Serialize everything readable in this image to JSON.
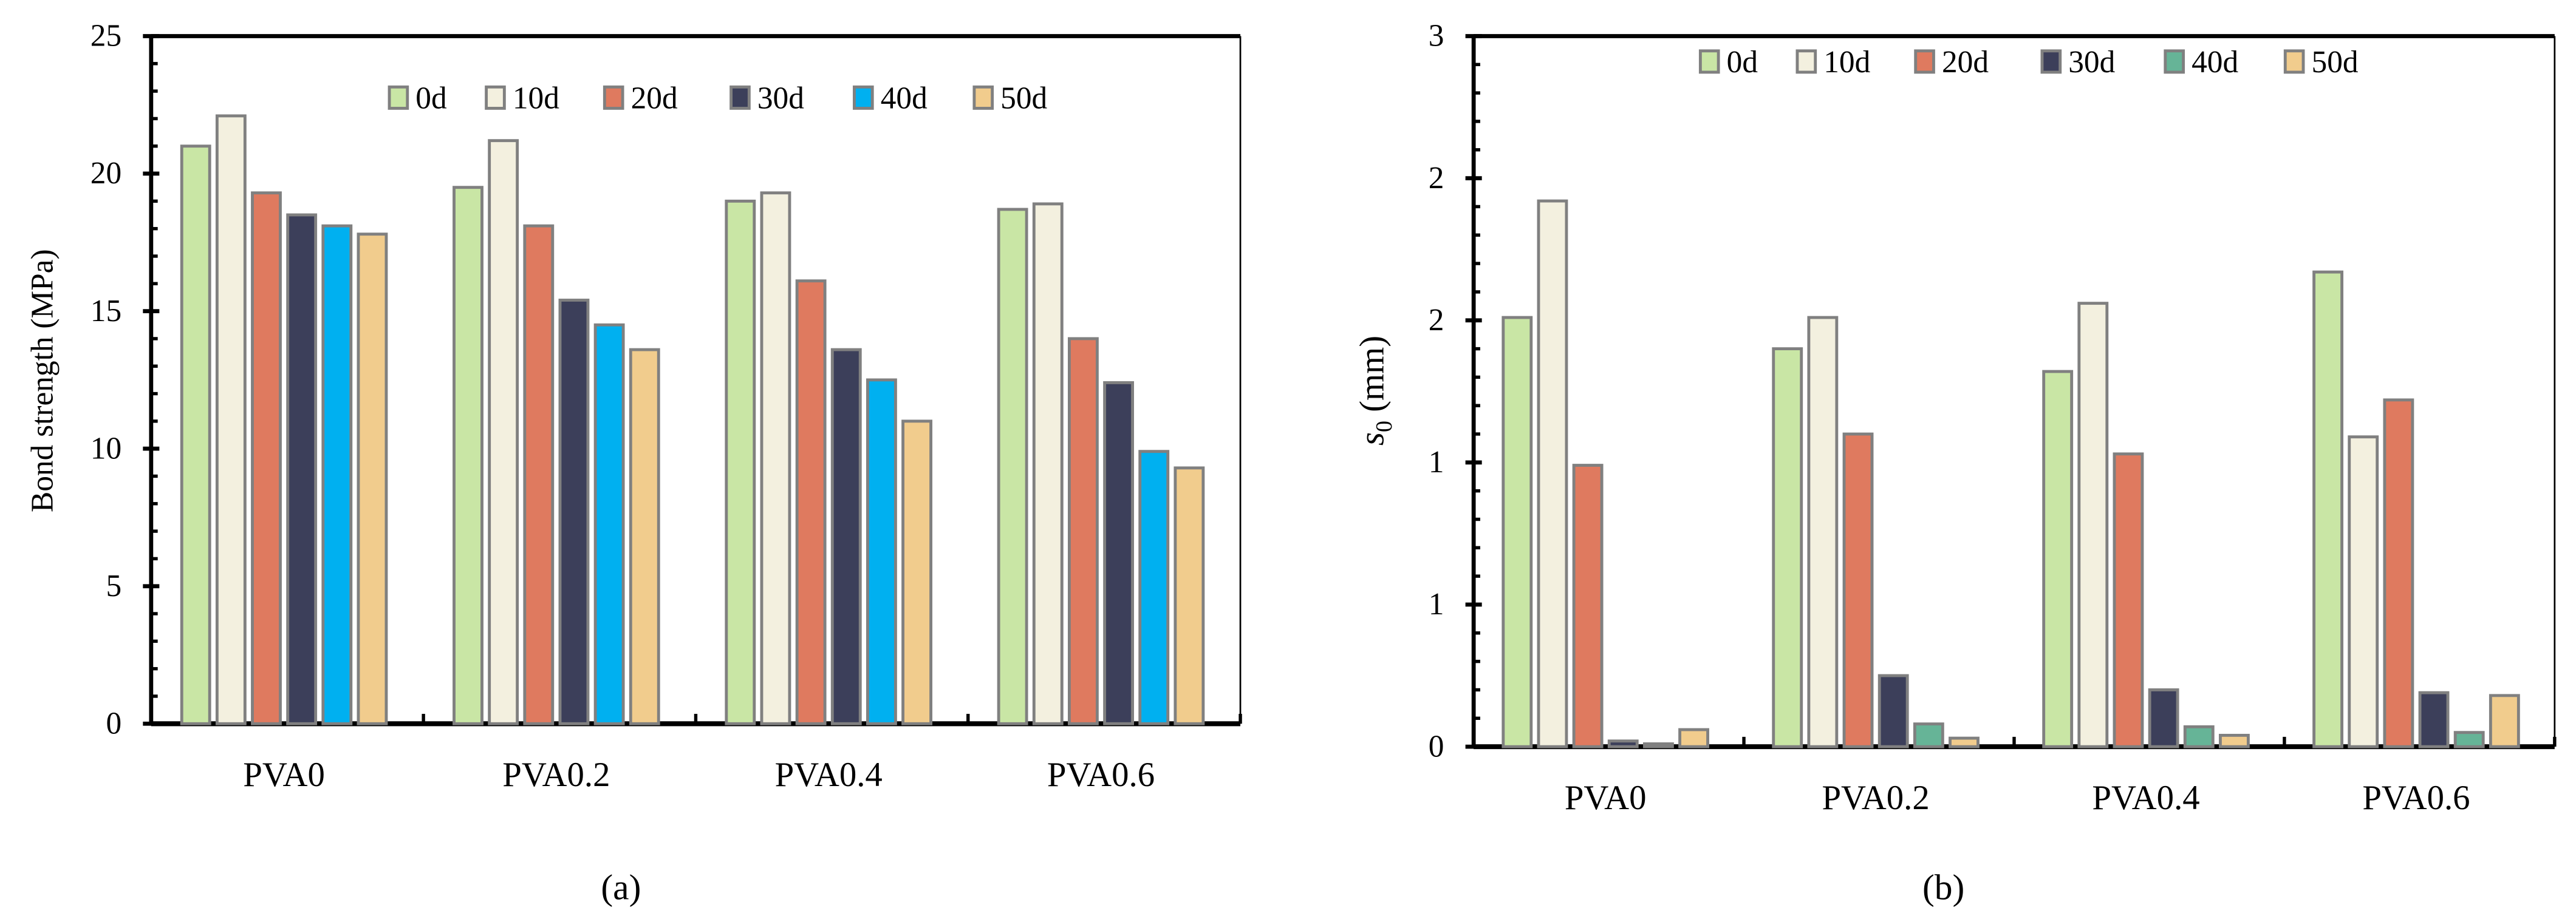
{
  "series_colors": {
    "0d": "#c9e6a5",
    "10d": "#f3f0df",
    "20d": "#df7a5f",
    "30d": "#3c3f5a",
    "40d_a": "#00b0f0",
    "40d_b": "#66b497",
    "50d": "#f1cc8d"
  },
  "bar_outline": "#808080",
  "chart_data": [
    {
      "type": "bar",
      "panel_label": "(a)",
      "ylabel": "Bond strength (MPa)",
      "xlabel": "",
      "ylim": [
        0,
        25
      ],
      "yticks": [
        0,
        5,
        10,
        15,
        20,
        25
      ],
      "ytick_labels": [
        "0",
        "5",
        "10",
        "15",
        "20",
        "25"
      ],
      "minor_tick_step": 1,
      "categories": [
        "PVA0",
        "PVA0.2",
        "PVA0.4",
        "PVA0.6"
      ],
      "legend_position": "top-right",
      "series": [
        {
          "name": "0d",
          "color": "#c9e6a5",
          "values": [
            21.0,
            19.5,
            19.0,
            18.7
          ]
        },
        {
          "name": "10d",
          "color": "#f3f0df",
          "values": [
            22.1,
            21.2,
            19.3,
            18.9
          ]
        },
        {
          "name": "20d",
          "color": "#df7a5f",
          "values": [
            19.3,
            18.1,
            16.1,
            14.0
          ]
        },
        {
          "name": "30d",
          "color": "#3c3f5a",
          "values": [
            18.5,
            15.4,
            13.6,
            12.4
          ]
        },
        {
          "name": "40d",
          "color": "#00b0f0",
          "values": [
            18.1,
            14.5,
            12.5,
            9.9
          ]
        },
        {
          "name": "50d",
          "color": "#f1cc8d",
          "values": [
            17.8,
            13.6,
            11.0,
            9.3
          ]
        }
      ]
    },
    {
      "type": "bar",
      "panel_label": "(b)",
      "ylabel_main": "s",
      "ylabel_sub": "0",
      "ylabel_unit": " (mm)",
      "xlabel": "",
      "ylim": [
        0,
        2.5
      ],
      "yticks": [
        0,
        0.5,
        1,
        1.5,
        2,
        2.5
      ],
      "ytick_labels": [
        "0",
        "1",
        "1",
        "2",
        "2",
        "3"
      ],
      "minor_tick_step": 0.1,
      "categories": [
        "PVA0",
        "PVA0.2",
        "PVA0.4",
        "PVA0.6"
      ],
      "legend_position": "top-right",
      "series": [
        {
          "name": "0d",
          "color": "#c9e6a5",
          "values": [
            1.51,
            1.4,
            1.32,
            1.67
          ]
        },
        {
          "name": "10d",
          "color": "#f3f0df",
          "values": [
            1.92,
            1.51,
            1.56,
            1.09
          ]
        },
        {
          "name": "20d",
          "color": "#df7a5f",
          "values": [
            0.99,
            1.1,
            1.03,
            1.22
          ]
        },
        {
          "name": "30d",
          "color": "#3c3f5a",
          "values": [
            0.02,
            0.25,
            0.2,
            0.19
          ]
        },
        {
          "name": "40d",
          "color": "#66b497",
          "values": [
            0.01,
            0.08,
            0.07,
            0.05
          ]
        },
        {
          "name": "50d",
          "color": "#f1cc8d",
          "values": [
            0.06,
            0.03,
            0.04,
            0.18
          ]
        }
      ]
    }
  ]
}
